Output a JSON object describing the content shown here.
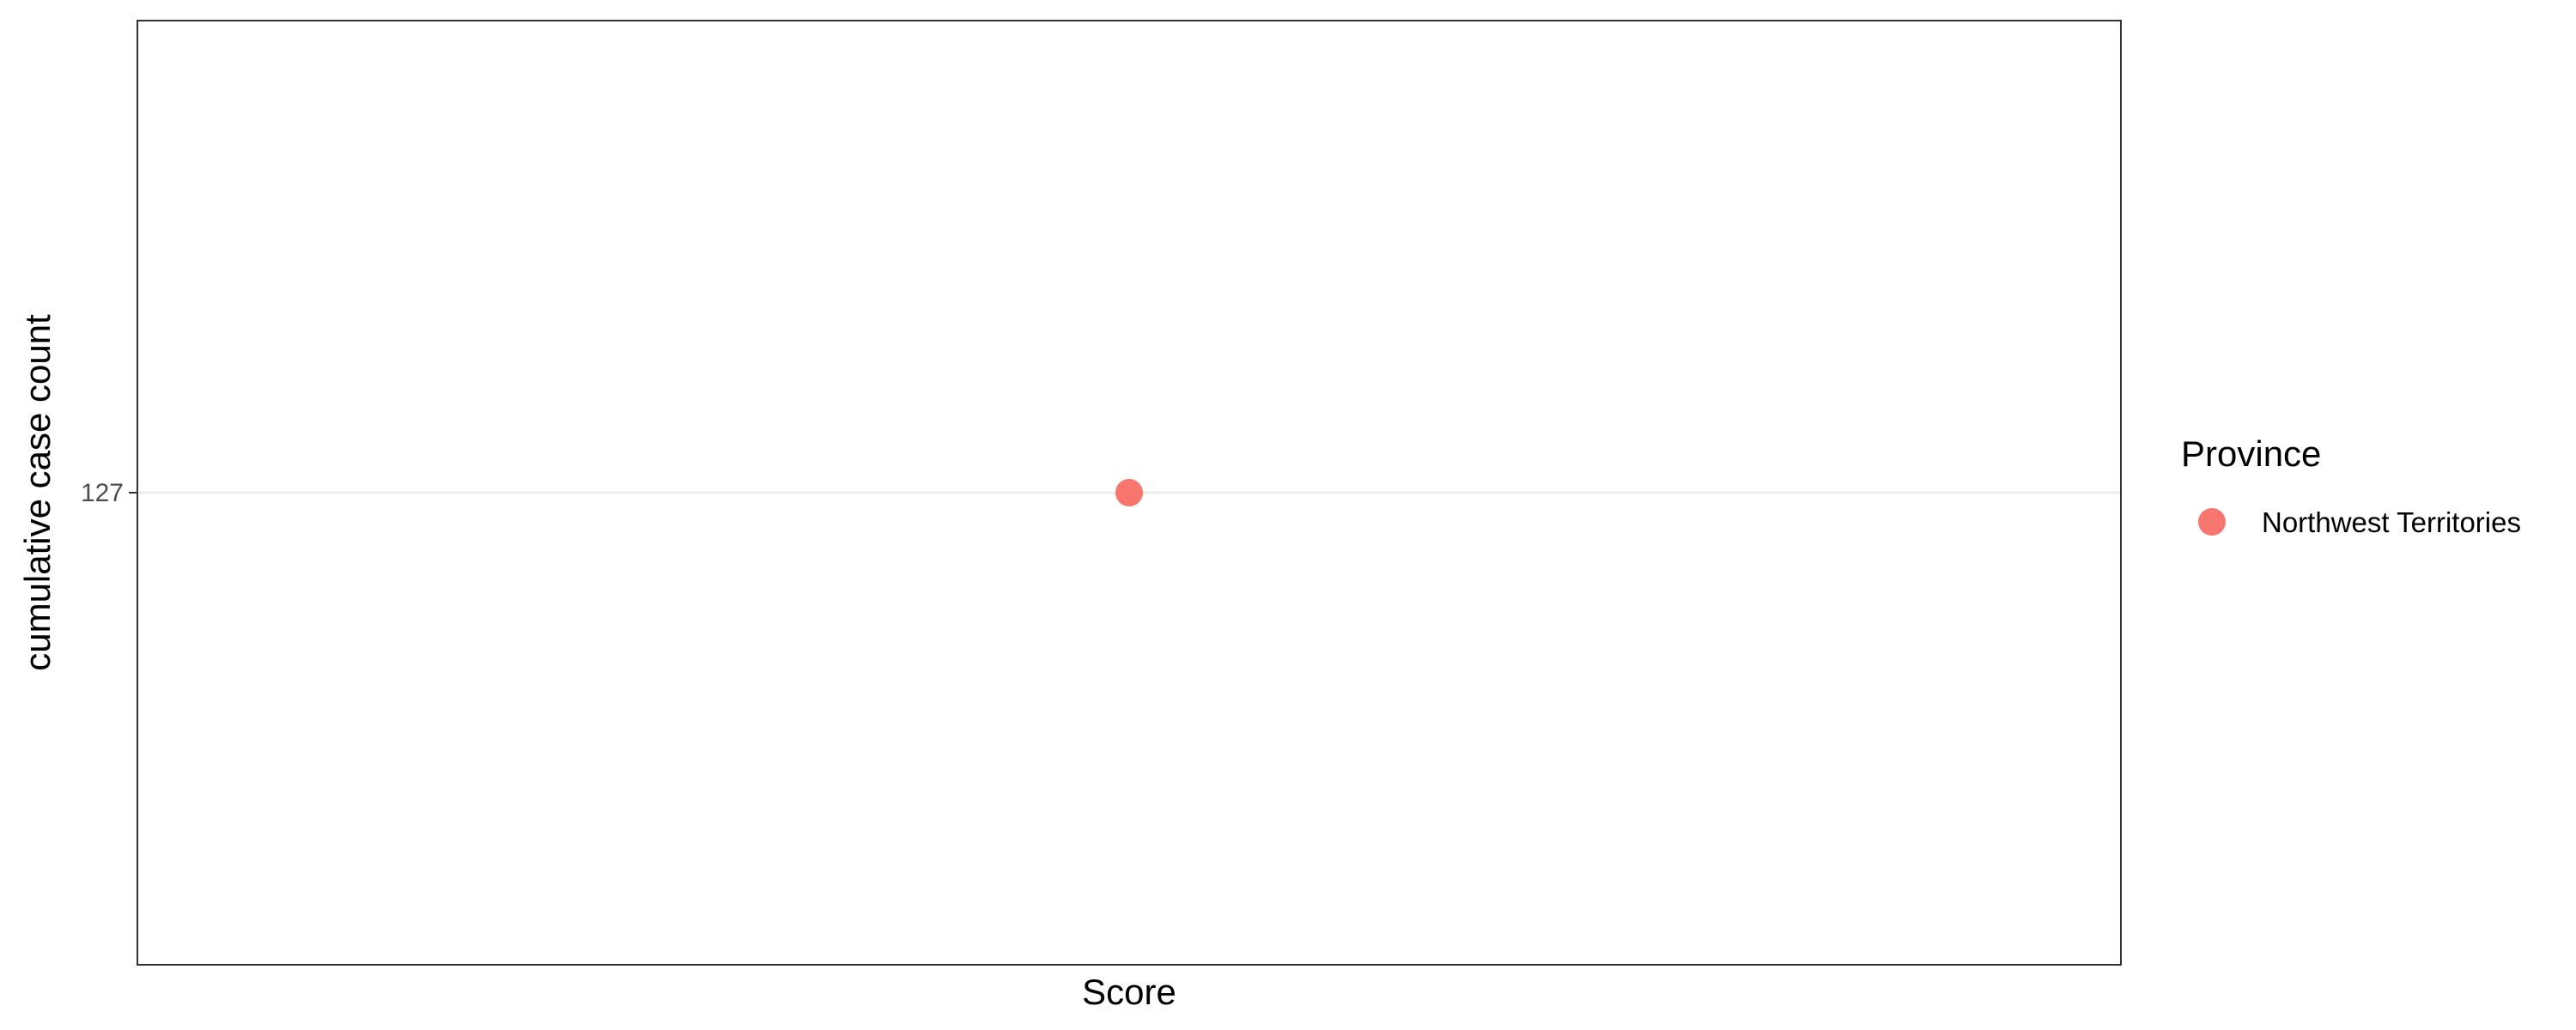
{
  "chart_data": {
    "type": "scatter",
    "title": "",
    "xlabel": "Score",
    "ylabel": "cumulative case count",
    "x": [
      "Score"
    ],
    "yticks": [
      127
    ],
    "ylim": [
      126,
      128
    ],
    "grid": true,
    "legend": {
      "title": "Province",
      "placement": "right"
    },
    "series": [
      {
        "name": "Northwest Territories",
        "color": "#F8766D",
        "points": [
          {
            "x": "Score",
            "y": 127
          }
        ]
      }
    ]
  }
}
